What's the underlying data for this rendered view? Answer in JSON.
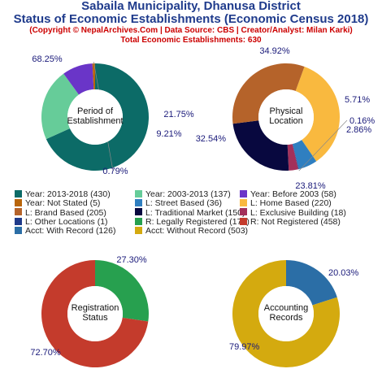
{
  "header": {
    "title_line1": "Sabaila Municipality, Dhanusa District",
    "title_line2": "Status of Economic Establishments (Economic Census 2018)",
    "copyright": "(Copyright © NepalArchives.Com | Data Source: CBS | Creator/Analyst: Milan Karki)",
    "total": "Total Economic Establishments: 630"
  },
  "chart_data": [
    {
      "type": "pie",
      "center_label": [
        "Period of",
        "Establishment"
      ],
      "slices": [
        {
          "label": "Year: 2013-2018",
          "value": 430,
          "pct_label": "68.25%",
          "color": "#0c6b67"
        },
        {
          "label": "Year: 2003-2013",
          "value": 137,
          "pct_label": "21.75%",
          "color": "#66cc99"
        },
        {
          "label": "Year: Before 2003",
          "value": 58,
          "pct_label": "9.21%",
          "color": "#6a35c8"
        },
        {
          "label": "Year: Not Stated",
          "value": 5,
          "pct_label": "0.79%",
          "color": "#b9650a"
        }
      ]
    },
    {
      "type": "pie",
      "center_label": [
        "Physical",
        "Location"
      ],
      "slices": [
        {
          "label": "L: Home Based",
          "value": 220,
          "pct_label": "34.92%",
          "color": "#f9b93f"
        },
        {
          "label": "L: Street Based",
          "value": 36,
          "pct_label": "5.71%",
          "color": "#2f7fc0"
        },
        {
          "label": "L: Other Locations",
          "value": 1,
          "pct_label": "0.16%",
          "color": "#1f3a8a"
        },
        {
          "label": "L: Exclusive Building",
          "value": 18,
          "pct_label": "2.86%",
          "color": "#a3305a"
        },
        {
          "label": "L: Traditional Market",
          "value": 150,
          "pct_label": "23.81%",
          "color": "#08083f"
        },
        {
          "label": "L: Brand Based",
          "value": 205,
          "pct_label": "32.54%",
          "color": "#b5632a"
        }
      ]
    },
    {
      "type": "pie",
      "center_label": [
        "Registration",
        "Status"
      ],
      "slices": [
        {
          "label": "R: Legally Registered",
          "value": 172,
          "pct_label": "27.30%",
          "color": "#27a04f"
        },
        {
          "label": "R: Not Registered",
          "value": 458,
          "pct_label": "72.70%",
          "color": "#c43b2c"
        }
      ]
    },
    {
      "type": "pie",
      "center_label": [
        "Accounting",
        "Records"
      ],
      "slices": [
        {
          "label": "Acct: With Record",
          "value": 126,
          "pct_label": "20.03%",
          "color": "#2b6ea6"
        },
        {
          "label": "Acct: Without Record",
          "value": 503,
          "pct_label": "79.97%",
          "color": "#d4aa0f"
        }
      ]
    }
  ],
  "legend": [
    {
      "text": "Year: 2013-2018 (430)",
      "color": "#0c6b67"
    },
    {
      "text": "Year: 2003-2013 (137)",
      "color": "#66cc99"
    },
    {
      "text": "Year: Before 2003 (58)",
      "color": "#6a35c8"
    },
    {
      "text": "Year: Not Stated (5)",
      "color": "#b9650a"
    },
    {
      "text": "L: Street Based (36)",
      "color": "#2f7fc0"
    },
    {
      "text": "L: Home Based (220)",
      "color": "#f9b93f"
    },
    {
      "text": "L: Brand Based (205)",
      "color": "#b5632a"
    },
    {
      "text": "L: Traditional Market (150)",
      "color": "#08083f"
    },
    {
      "text": "L: Exclusive Building (18)",
      "color": "#a3305a"
    },
    {
      "text": "L: Other Locations (1)",
      "color": "#1f3a8a"
    },
    {
      "text": "R: Legally Registered (172)",
      "color": "#27a04f"
    },
    {
      "text": "R: Not Registered (458)",
      "color": "#c43b2c"
    },
    {
      "text": "Acct: With Record (126)",
      "color": "#2b6ea6"
    },
    {
      "text": "Acct: Without Record (503)",
      "color": "#d4aa0f"
    }
  ]
}
